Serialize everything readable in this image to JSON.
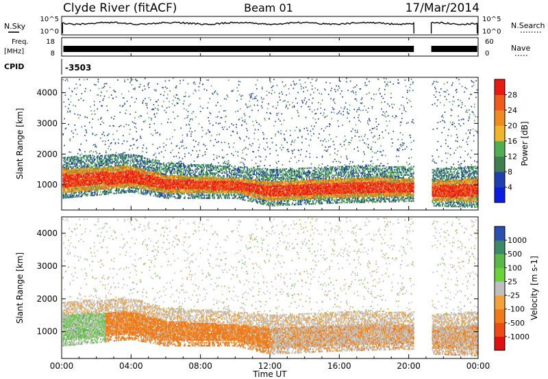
{
  "header": {
    "station": "Clyde River (fitACF)",
    "beam": "Beam 01",
    "date": "17/Mar/2014"
  },
  "strips": {
    "nsky_label": "N.Sky",
    "nsky_ticks": [
      "10^5",
      "10^0"
    ],
    "nsearch_label": "N.Search",
    "nsearch_ticks": [
      "10^5",
      "10^0"
    ],
    "freq_label": "Freq.",
    "freq_unit": "[MHz]",
    "freq_ticks": [
      "18",
      "8"
    ],
    "nave_label": "Nave",
    "nave_ticks": [
      "60",
      "0"
    ],
    "cpid_label": "CPID",
    "cpid_value": "-3503"
  },
  "x_axis": {
    "label": "Time UT",
    "ticks": [
      "00:00",
      "04:00",
      "08:00",
      "12:00",
      "16:00",
      "20:00",
      "00:00"
    ],
    "range_hours": [
      0,
      24
    ]
  },
  "chart_data": [
    {
      "type": "heatmap",
      "title": "",
      "xlabel": "Time UT",
      "ylabel": "Slant Range [km]",
      "yticks": [
        1000,
        2000,
        3000,
        4000
      ],
      "ylim": [
        180,
        4500
      ],
      "xlim_hours": [
        0,
        24
      ],
      "data_gaps_hours": [
        [
          20.3,
          21.3
        ]
      ],
      "colorbar": {
        "label": "Power [dB]",
        "ticks": [
          "4",
          "8",
          "12",
          "16",
          "20",
          "24",
          "28"
        ],
        "colors": [
          "#0a1ee0",
          "#1d3fb0",
          "#3f7e4e",
          "#4fae4f",
          "#f2b52a",
          "#f08b20",
          "#f05a1a",
          "#e81a14"
        ]
      },
      "approx_main_echo_band_km": [
        {
          "t": 0.0,
          "low": 700,
          "high": 1500
        },
        {
          "t": 4.0,
          "low": 900,
          "high": 1600
        },
        {
          "t": 6.0,
          "low": 700,
          "high": 1300
        },
        {
          "t": 10.0,
          "low": 700,
          "high": 1200
        },
        {
          "t": 12.0,
          "low": 450,
          "high": 1100
        },
        {
          "t": 16.0,
          "low": 550,
          "high": 1200
        },
        {
          "t": 20.3,
          "low": 600,
          "high": 1200
        },
        {
          "t": 21.3,
          "low": 450,
          "high": 1100
        },
        {
          "t": 24.0,
          "low": 400,
          "high": 1200
        }
      ]
    },
    {
      "type": "heatmap",
      "title": "",
      "xlabel": "Time UT",
      "ylabel": "Slant Range [km]",
      "yticks": [
        1000,
        2000,
        3000,
        4000
      ],
      "ylim": [
        180,
        4500
      ],
      "xlim_hours": [
        0,
        24
      ],
      "data_gaps_hours": [
        [
          20.3,
          21.3
        ]
      ],
      "colorbar": {
        "label": "Velocity [m s-1]",
        "ticks": [
          "1000",
          "500",
          "100",
          "25",
          "-25",
          "-100",
          "-500",
          "-1000"
        ],
        "colors": [
          "#2a4fb0",
          "#3c8a66",
          "#58b84a",
          "#6cd23a",
          "#bfbfbf",
          "#f2a23a",
          "#f07a1a",
          "#ee4a14",
          "#e01010"
        ]
      }
    }
  ]
}
